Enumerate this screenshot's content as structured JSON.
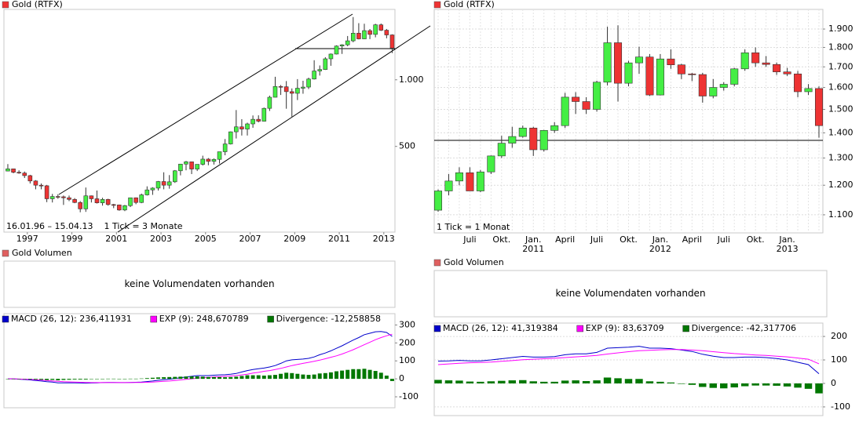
{
  "chart_data": [
    {
      "type": "candlestick",
      "title": "Gold (RTFX)",
      "up_color": "#44ee44",
      "down_color": "#ee3333",
      "log_scale": true,
      "grid": false,
      "annotations": [
        "16.01.96 – 15.04.13",
        "1 Tick = 3 Monate"
      ],
      "x": [
        1996.125,
        1996.375,
        1996.625,
        1996.875,
        1997.125,
        1997.375,
        1997.625,
        1997.875,
        1998.125,
        1998.375,
        1998.625,
        1998.875,
        1999.125,
        1999.375,
        1999.625,
        1999.875,
        2000.125,
        2000.375,
        2000.625,
        2000.875,
        2001.125,
        2001.375,
        2001.625,
        2001.875,
        2002.125,
        2002.375,
        2002.625,
        2002.875,
        2003.125,
        2003.375,
        2003.625,
        2003.875,
        2004.125,
        2004.375,
        2004.625,
        2004.875,
        2005.125,
        2005.375,
        2005.625,
        2005.875,
        2006.125,
        2006.375,
        2006.625,
        2006.875,
        2007.125,
        2007.375,
        2007.625,
        2007.875,
        2008.125,
        2008.375,
        2008.625,
        2008.875,
        2009.125,
        2009.375,
        2009.625,
        2009.875,
        2010.125,
        2010.375,
        2010.625,
        2010.875,
        2011.125,
        2011.375,
        2011.625,
        2011.875,
        2012.125,
        2012.375,
        2012.625,
        2012.875,
        2013.125,
        2013.375
      ],
      "xlim": [
        1995.95,
        2013.5
      ],
      "xticks": [
        1997,
        1999,
        2001,
        2003,
        2005,
        2007,
        2009,
        2011,
        2013
      ],
      "open": [
        387,
        396,
        382,
        379,
        369,
        349,
        334,
        332,
        290,
        297,
        296,
        293,
        288,
        279,
        261,
        299,
        290,
        278,
        288,
        273,
        272,
        258,
        270,
        293,
        279,
        302,
        318,
        324,
        347,
        334,
        346,
        388,
        416,
        426,
        395,
        415,
        438,
        428,
        437,
        473,
        513,
        582,
        613,
        599,
        632,
        663,
        650,
        743,
        834,
        933,
        930,
        884,
        869,
        916,
        927,
        1008,
        1096,
        1113,
        1244,
        1307,
        1421,
        1439,
        1500,
        1624,
        1531,
        1668,
        1604,
        1772,
        1675,
        1595
      ],
      "high": [
        416,
        397,
        390,
        385,
        372,
        352,
        340,
        335,
        305,
        304,
        300,
        300,
        292,
        283,
        326,
        300,
        316,
        293,
        290,
        275,
        273,
        272,
        293,
        294,
        306,
        330,
        327,
        349,
        382,
        371,
        391,
        417,
        430,
        427,
        415,
        454,
        443,
        441,
        473,
        540,
        584,
        730,
        664,
        640,
        690,
        691,
        749,
        848,
        1032,
        947,
        987,
        914,
        1007,
        990,
        1022,
        1226,
        1161,
        1265,
        1315,
        1431,
        1448,
        1577,
        1921,
        1803,
        1792,
        1696,
        1791,
        1796,
        1697,
        1605
      ],
      "low": [
        386,
        378,
        376,
        360,
        340,
        320,
        320,
        280,
        279,
        290,
        272,
        283,
        277,
        252,
        253,
        279,
        276,
        270,
        270,
        263,
        256,
        255,
        266,
        274,
        277,
        300,
        302,
        316,
        320,
        322,
        342,
        370,
        390,
        375,
        387,
        410,
        411,
        414,
        418,
        456,
        510,
        543,
        560,
        560,
        607,
        642,
        648,
        723,
        833,
        854,
        740,
        681,
        810,
        865,
        908,
        1003,
        1045,
        1108,
        1157,
        1302,
        1309,
        1418,
        1478,
        1523,
        1526,
        1527,
        1556,
        1662,
        1540,
        1321
      ],
      "close": [
        396,
        382,
        379,
        369,
        349,
        334,
        332,
        290,
        297,
        296,
        293,
        288,
        279,
        261,
        299,
        290,
        278,
        288,
        273,
        272,
        258,
        270,
        293,
        279,
        302,
        318,
        324,
        347,
        334,
        346,
        388,
        416,
        426,
        395,
        415,
        438,
        428,
        437,
        473,
        513,
        582,
        613,
        599,
        632,
        663,
        650,
        743,
        834,
        933,
        930,
        884,
        869,
        916,
        927,
        1008,
        1096,
        1113,
        1244,
        1307,
        1421,
        1439,
        1500,
        1624,
        1531,
        1668,
        1604,
        1772,
        1675,
        1595,
        1390
      ],
      "ylim": [
        205,
        2080
      ],
      "yticks": [
        500,
        {
          "value": 1000,
          "label": "1.000"
        }
      ]
    },
    {
      "type": "volume",
      "title": "Gold Volumen",
      "message": "keine Volumendaten vorhanden"
    },
    {
      "type": "macd",
      "grid": false,
      "ylim": [
        -161,
        363
      ],
      "yticks": [
        -100,
        0,
        100,
        200,
        300
      ],
      "series": [
        {
          "name": "MACD (26, 12): 236,411931",
          "color": "#0000cc",
          "style": "line",
          "values": [
            0,
            0,
            -2,
            -4,
            -6,
            -9,
            -12,
            -16,
            -18,
            -22,
            -22,
            -22,
            -22,
            -23,
            -24,
            -23,
            -22,
            -21,
            -20,
            -20,
            -21,
            -21,
            -20,
            -19,
            -18,
            -15,
            -12,
            -8,
            -5,
            -2,
            2,
            6,
            10,
            14,
            18,
            18,
            18,
            20,
            22,
            23,
            26,
            30,
            38,
            46,
            52,
            56,
            60,
            66,
            74,
            86,
            100,
            106,
            108,
            110,
            114,
            122,
            134,
            144,
            156,
            170,
            184,
            200,
            216,
            230,
            246,
            254,
            262,
            264,
            258,
            236.411931
          ]
        },
        {
          "name": "EXP (9): 248,670789",
          "color": "#ff00ff",
          "style": "line",
          "values": [
            0,
            0,
            -1,
            -2,
            -3,
            -5,
            -7,
            -9,
            -12,
            -14,
            -16,
            -17,
            -18,
            -19,
            -20,
            -21,
            -21,
            -21,
            -21,
            -21,
            -21,
            -21,
            -21,
            -20,
            -20,
            -19,
            -18,
            -16,
            -14,
            -12,
            -9,
            -6,
            -3,
            0,
            4,
            6,
            8,
            10,
            12,
            14,
            16,
            18,
            22,
            26,
            32,
            36,
            42,
            46,
            52,
            58,
            66,
            74,
            80,
            86,
            92,
            98,
            104,
            112,
            120,
            128,
            138,
            150,
            162,
            176,
            190,
            204,
            218,
            230,
            240,
            248.670789
          ]
        },
        {
          "name": "Divergence: -12,258858",
          "color": "#007700",
          "style": "bar",
          "values": [
            0,
            0,
            -1,
            -2,
            -3,
            -4,
            -5,
            -7,
            -6,
            -8,
            -6,
            -5,
            -4,
            -4,
            -4,
            -2,
            -1,
            0,
            1,
            1,
            0,
            0,
            1,
            1,
            2,
            4,
            6,
            8,
            9,
            10,
            11,
            12,
            13,
            14,
            14,
            12,
            10,
            10,
            10,
            9,
            10,
            12,
            16,
            20,
            20,
            20,
            18,
            20,
            22,
            28,
            34,
            32,
            28,
            24,
            22,
            24,
            30,
            32,
            36,
            42,
            46,
            50,
            54,
            54,
            56,
            50,
            44,
            34,
            18,
            -12.258858
          ]
        }
      ]
    },
    {
      "type": "candlestick",
      "title": "Gold (RTFX)",
      "up_color": "#44ee44",
      "down_color": "#ee3333",
      "log_scale": true,
      "grid": true,
      "annotations": [
        "1 Tick = 1 Monat"
      ],
      "categories": [
        null,
        null,
        null,
        "Juli",
        null,
        null,
        "Okt.",
        null,
        null,
        "Jan.",
        null,
        null,
        "April",
        null,
        null,
        "Juli",
        null,
        null,
        "Okt.",
        null,
        null,
        "Jan.",
        null,
        null,
        "April",
        null,
        null,
        "Juli",
        null,
        null,
        "Okt.",
        null,
        null,
        "Jan.",
        null,
        null,
        null
      ],
      "years": [
        null,
        null,
        null,
        null,
        null,
        null,
        null,
        null,
        null,
        "2011",
        null,
        null,
        null,
        null,
        null,
        null,
        null,
        null,
        null,
        null,
        null,
        "2012",
        null,
        null,
        null,
        null,
        null,
        null,
        null,
        null,
        null,
        null,
        null,
        "2013",
        null,
        null,
        null
      ],
      "open": [
        1115,
        1180,
        1215,
        1245,
        1180,
        1248,
        1308,
        1358,
        1385,
        1420,
        1332,
        1410,
        1430,
        1555,
        1535,
        1500,
        1625,
        1825,
        1620,
        1720,
        1750,
        1565,
        1740,
        1710,
        1665,
        1662,
        1560,
        1600,
        1615,
        1690,
        1772,
        1720,
        1712,
        1675,
        1665,
        1580,
        1595
      ],
      "high": [
        1185,
        1240,
        1265,
        1265,
        1255,
        1310,
        1388,
        1425,
        1430,
        1425,
        1412,
        1445,
        1575,
        1578,
        1555,
        1632,
        1913,
        1921,
        1730,
        1804,
        1765,
        1765,
        1790,
        1715,
        1670,
        1670,
        1640,
        1625,
        1695,
        1790,
        1800,
        1755,
        1722,
        1695,
        1680,
        1616,
        1605
      ],
      "low": [
        1110,
        1165,
        1200,
        1180,
        1176,
        1240,
        1300,
        1340,
        1380,
        1308,
        1325,
        1400,
        1420,
        1480,
        1480,
        1490,
        1610,
        1535,
        1605,
        1665,
        1560,
        1563,
        1690,
        1640,
        1630,
        1530,
        1550,
        1585,
        1605,
        1680,
        1700,
        1700,
        1660,
        1655,
        1555,
        1565,
        1380
      ],
      "close": [
        1180,
        1215,
        1245,
        1180,
        1248,
        1308,
        1358,
        1385,
        1420,
        1332,
        1410,
        1430,
        1555,
        1535,
        1500,
        1625,
        1825,
        1620,
        1720,
        1750,
        1565,
        1740,
        1710,
        1665,
        1662,
        1560,
        1600,
        1615,
        1690,
        1772,
        1720,
        1712,
        1675,
        1665,
        1580,
        1595,
        1430
      ],
      "ylim": [
        1043,
        2013
      ],
      "yticks": [
        {
          "value": 1100,
          "label": "1.100"
        },
        {
          "value": 1200,
          "label": "1.200"
        },
        {
          "value": 1300,
          "label": "1.300"
        },
        {
          "value": 1400,
          "label": "1.400"
        },
        {
          "value": 1500,
          "label": "1.500"
        },
        {
          "value": 1600,
          "label": "1.600"
        },
        {
          "value": 1700,
          "label": "1.700"
        },
        {
          "value": 1800,
          "label": "1.800"
        },
        {
          "value": 1900,
          "label": "1.900"
        }
      ]
    },
    {
      "type": "volume",
      "title": "Gold Volumen",
      "message": "keine Volumendaten vorhanden"
    },
    {
      "type": "macd",
      "grid": true,
      "ylim": [
        -137,
        257
      ],
      "yticks": [
        -100,
        0,
        100,
        200
      ],
      "series": [
        {
          "name": "MACD (26, 12): 41,319384",
          "color": "#0000cc",
          "style": "line",
          "values": [
            95,
            96,
            98,
            96,
            96,
            100,
            105,
            110,
            115,
            112,
            112,
            114,
            122,
            126,
            126,
            132,
            150,
            152,
            154,
            158,
            150,
            150,
            148,
            142,
            136,
            124,
            116,
            110,
            110,
            112,
            112,
            110,
            106,
            100,
            90,
            80,
            41.319384
          ]
        },
        {
          "name": "EXP (9): 83,63709",
          "color": "#ff00ff",
          "style": "line",
          "values": [
            80,
            83,
            86,
            88,
            89,
            91,
            94,
            97,
            101,
            103,
            105,
            107,
            110,
            113,
            116,
            119,
            125,
            130,
            135,
            139,
            141,
            143,
            144,
            144,
            142,
            139,
            135,
            131,
            127,
            124,
            121,
            119,
            116,
            113,
            108,
            103,
            83.63709
          ]
        },
        {
          "name": "Divergence: -42,317706",
          "color": "#007700",
          "style": "bar",
          "values": [
            15,
            13,
            12,
            8,
            7,
            9,
            11,
            13,
            14,
            9,
            7,
            7,
            12,
            13,
            10,
            13,
            25,
            22,
            19,
            19,
            9,
            7,
            4,
            -2,
            -6,
            -15,
            -19,
            -21,
            -17,
            -12,
            -9,
            -9,
            -10,
            -13,
            -18,
            -23,
            -42.317706
          ]
        }
      ]
    }
  ]
}
